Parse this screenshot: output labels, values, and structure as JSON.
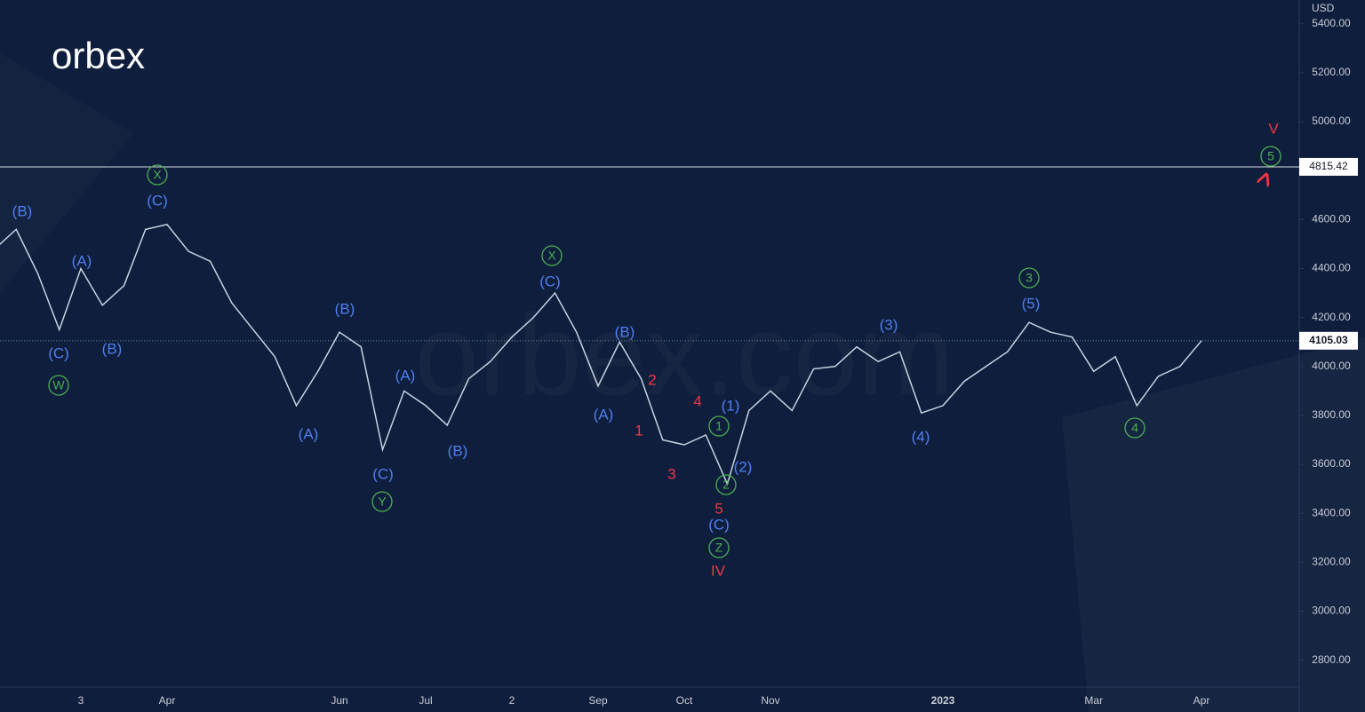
{
  "logo": "orbex",
  "watermark": "orbex.com",
  "chart_data": {
    "type": "line",
    "currency": "USD",
    "categories": [
      null,
      null,
      null,
      null,
      "3",
      null,
      null,
      null,
      "Apr",
      null,
      null,
      null,
      null,
      null,
      null,
      null,
      "Jun",
      null,
      null,
      null,
      "Jul",
      null,
      null,
      null,
      "2",
      null,
      null,
      null,
      "Sep",
      null,
      null,
      null,
      "Oct",
      null,
      null,
      null,
      "Nov",
      null,
      null,
      null,
      null,
      null,
      null,
      null,
      "2023",
      null,
      null,
      null,
      null,
      null,
      null,
      "Mar",
      null,
      null,
      null,
      null,
      "Apr",
      null,
      null,
      null
    ],
    "series": [
      {
        "color": "#c5d3e2",
        "values": [
          4480,
          4560,
          4380,
          4150,
          4400,
          4250,
          4330,
          4560,
          4580,
          4470,
          4430,
          4260,
          4150,
          4040,
          3840,
          3980,
          4140,
          4080,
          3660,
          3900,
          3840,
          3760,
          3950,
          4020,
          4120,
          4200,
          4300,
          4140,
          3920,
          4100,
          3950,
          3700,
          3680,
          3720,
          3520,
          3820,
          3900,
          3820,
          3990,
          4000,
          4080,
          4020,
          4060,
          3810,
          3840,
          3940,
          4000,
          4060,
          4180,
          4140,
          4120,
          3980,
          4040,
          3840,
          3960,
          4000,
          4105,
          null,
          null,
          null
        ]
      },
      {
        "color": "#f23645",
        "values": [
          null,
          null,
          null,
          null,
          null,
          null,
          null,
          null,
          null,
          null,
          null,
          null,
          null,
          null,
          null,
          null,
          null,
          null,
          null,
          null,
          null,
          null,
          null,
          null,
          null,
          null,
          null,
          null,
          null,
          null,
          null,
          null,
          null,
          null,
          null,
          null,
          null,
          null,
          null,
          null,
          null,
          null,
          null,
          null,
          null,
          null,
          null,
          null,
          null,
          null,
          null,
          null,
          null,
          null,
          null,
          null,
          4105,
          null,
          null,
          4780
        ]
      }
    ],
    "ylim": [
      2690,
      5497
    ],
    "yticks": [
      {
        "value": 2800,
        "label": "2800.00"
      },
      {
        "value": 3000,
        "label": "3000.00"
      },
      {
        "value": 3200,
        "label": "3200.00"
      },
      {
        "value": 3400,
        "label": "3400.00"
      },
      {
        "value": 3600,
        "label": "3600.00"
      },
      {
        "value": 3800,
        "label": "3800.00"
      },
      {
        "value": 4000,
        "label": "4000.00"
      },
      {
        "value": 4200,
        "label": "4200.00"
      },
      {
        "value": 4400,
        "label": "4400.00"
      },
      {
        "value": 4600,
        "label": "4600.00"
      },
      {
        "value": 4800,
        "label": "4800.00"
      },
      {
        "value": 5000,
        "label": "5000.00"
      },
      {
        "value": 5200,
        "label": "5200.00"
      },
      {
        "value": 5400,
        "label": "5400.00"
      }
    ],
    "resistance": 4815.42,
    "last_price": 4105.03,
    "annotations": [
      {
        "text": "(B)",
        "color": "#4f7ff0"
      },
      {
        "text": "(A)",
        "color": "#4f7ff0"
      },
      {
        "text": "(C)",
        "color": "#4f7ff0"
      },
      {
        "text": "(B)",
        "color": "#4f7ff0"
      },
      {
        "text": "(C)",
        "color": "#4f7ff0"
      },
      {
        "text": "(A)",
        "color": "#4f7ff0"
      },
      {
        "text": "(B)",
        "color": "#4f7ff0"
      },
      {
        "text": "(C)",
        "color": "#4f7ff0"
      },
      {
        "text": "(A)",
        "color": "#4f7ff0"
      },
      {
        "text": "(B)",
        "color": "#4f7ff0"
      },
      {
        "text": "(C)",
        "color": "#4f7ff0"
      },
      {
        "text": "(A)",
        "color": "#4f7ff0"
      },
      {
        "text": "(B)",
        "color": "#4f7ff0"
      },
      {
        "text": "(1)",
        "color": "#4f7ff0"
      },
      {
        "text": "(2)",
        "color": "#4f7ff0"
      },
      {
        "text": "(C)",
        "color": "#4f7ff0"
      },
      {
        "text": "(3)",
        "color": "#4f7ff0"
      },
      {
        "text": "(4)",
        "color": "#4f7ff0"
      },
      {
        "text": "(5)",
        "color": "#4f7ff0"
      },
      {
        "text": "W",
        "color": "#4caf50",
        "circled": true
      },
      {
        "text": "X",
        "color": "#4caf50",
        "circled": true
      },
      {
        "text": "Y",
        "color": "#4caf50",
        "circled": true
      },
      {
        "text": "X",
        "color": "#4caf50",
        "circled": true
      },
      {
        "text": "1",
        "color": "#4caf50",
        "circled": true
      },
      {
        "text": "2",
        "color": "#4caf50",
        "circled": true
      },
      {
        "text": "Z",
        "color": "#4caf50",
        "circled": true
      },
      {
        "text": "3",
        "color": "#4caf50",
        "circled": true
      },
      {
        "text": "4",
        "color": "#4caf50",
        "circled": true
      },
      {
        "text": "5",
        "color": "#4caf50",
        "circled": true
      },
      {
        "text": "2",
        "color": "#f23645"
      },
      {
        "text": "1",
        "color": "#f23645"
      },
      {
        "text": "4",
        "color": "#f23645"
      },
      {
        "text": "3",
        "color": "#f23645"
      },
      {
        "text": "5",
        "color": "#f23645"
      },
      {
        "text": "IV",
        "color": "#f23645"
      },
      {
        "text": "V",
        "color": "#f23645"
      }
    ]
  }
}
